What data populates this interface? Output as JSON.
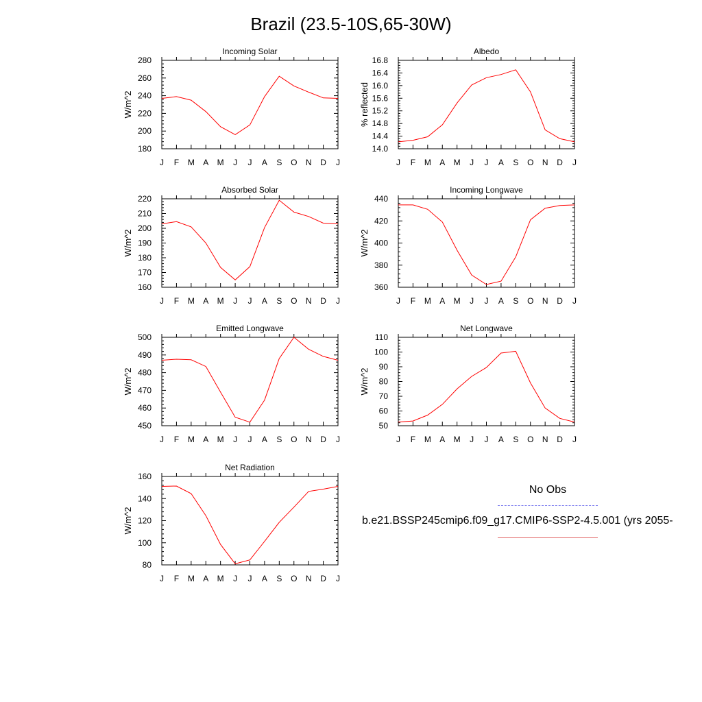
{
  "title": "Brazil (23.5-10S,65-30W)",
  "months": [
    "J",
    "F",
    "M",
    "A",
    "M",
    "J",
    "J",
    "A",
    "S",
    "O",
    "N",
    "D",
    "J"
  ],
  "legend": {
    "obs_label": "No Obs",
    "obs_color": "#7777ee",
    "model_label": "b.e21.BSSP245cmip6.f09_g17.CMIP6-SSP2-4.5.001 (yrs 2055-",
    "model_color": "#ff0000"
  },
  "chart_data": [
    {
      "type": "line",
      "title": "Incoming Solar",
      "ylabel": "W/m^2",
      "ylim": [
        180,
        280
      ],
      "yticks": [
        180,
        200,
        220,
        240,
        260,
        280
      ],
      "x": [
        "J",
        "F",
        "M",
        "A",
        "M",
        "J",
        "J",
        "A",
        "S",
        "O",
        "N",
        "D",
        "J"
      ],
      "series": [
        {
          "name": "b.e21.BSSP245cmip6.f09_g17.CMIP6-SSP2-4.5.001 (yrs 2055-",
          "values": [
            237,
            239,
            235,
            222,
            205,
            196,
            207,
            239,
            262,
            251,
            244,
            237.5,
            237
          ]
        }
      ]
    },
    {
      "type": "line",
      "title": "Albedo",
      "ylabel": "% reflected",
      "ylim": [
        14.0,
        16.8
      ],
      "yticks": [
        "14.0",
        "14.4",
        "14.8",
        "15.2",
        "15.6",
        "16.0",
        "16.4",
        "16.8"
      ],
      "x": [
        "J",
        "F",
        "M",
        "A",
        "M",
        "J",
        "J",
        "A",
        "S",
        "O",
        "N",
        "D",
        "J"
      ],
      "series": [
        {
          "name": "b.e21.BSSP245cmip6.f09_g17.CMIP6-SSP2-4.5.001 (yrs 2055-",
          "values": [
            14.22,
            14.27,
            14.38,
            14.76,
            15.45,
            16.02,
            16.25,
            16.35,
            16.5,
            15.8,
            14.6,
            14.32,
            14.22
          ]
        }
      ]
    },
    {
      "type": "line",
      "title": "Absorbed Solar",
      "ylabel": "W/m^2",
      "ylim": [
        160,
        220
      ],
      "yticks": [
        160,
        170,
        180,
        190,
        200,
        210,
        220
      ],
      "x": [
        "J",
        "F",
        "M",
        "A",
        "M",
        "J",
        "J",
        "A",
        "S",
        "O",
        "N",
        "D",
        "J"
      ],
      "series": [
        {
          "name": "b.e21.BSSP245cmip6.f09_g17.CMIP6-SSP2-4.5.001 (yrs 2055-",
          "values": [
            203,
            204.5,
            201,
            190,
            173.5,
            165,
            174,
            200.5,
            219,
            211,
            208,
            203.5,
            203
          ]
        }
      ]
    },
    {
      "type": "line",
      "title": "Incoming Longwave",
      "ylabel": "W/m^2",
      "ylim": [
        360,
        440
      ],
      "yticks": [
        360,
        380,
        400,
        420,
        440
      ],
      "x": [
        "J",
        "F",
        "M",
        "A",
        "M",
        "J",
        "J",
        "A",
        "S",
        "O",
        "N",
        "D",
        "J"
      ],
      "series": [
        {
          "name": "b.e21.BSSP245cmip6.f09_g17.CMIP6-SSP2-4.5.001 (yrs 2055-",
          "values": [
            434.5,
            434.5,
            430.5,
            419,
            393.5,
            371,
            362.5,
            365.5,
            387.5,
            421,
            431.5,
            434,
            434.5
          ]
        }
      ]
    },
    {
      "type": "line",
      "title": "Emitted Longwave",
      "ylabel": "W/m^2",
      "ylim": [
        450,
        500
      ],
      "yticks": [
        450,
        460,
        470,
        480,
        490,
        500
      ],
      "x": [
        "J",
        "F",
        "M",
        "A",
        "M",
        "J",
        "J",
        "A",
        "S",
        "O",
        "N",
        "D",
        "J"
      ],
      "series": [
        {
          "name": "b.e21.BSSP245cmip6.f09_g17.CMIP6-SSP2-4.5.001 (yrs 2055-",
          "values": [
            487,
            487.6,
            487.3,
            483.5,
            469,
            454.8,
            452,
            464.5,
            488,
            500,
            493.2,
            489.2,
            487
          ]
        }
      ]
    },
    {
      "type": "line",
      "title": "Net Longwave",
      "ylabel": "W/m^2",
      "ylim": [
        50,
        110
      ],
      "yticks": [
        50,
        60,
        70,
        80,
        90,
        100,
        110
      ],
      "x": [
        "J",
        "F",
        "M",
        "A",
        "M",
        "J",
        "J",
        "A",
        "S",
        "O",
        "N",
        "D",
        "J"
      ],
      "series": [
        {
          "name": "b.e21.BSSP245cmip6.f09_g17.CMIP6-SSP2-4.5.001 (yrs 2055-",
          "values": [
            52.5,
            53.2,
            57.2,
            64.5,
            75,
            83.5,
            89.5,
            99.3,
            100.5,
            79,
            62,
            55,
            52.5
          ]
        }
      ]
    },
    {
      "type": "line",
      "title": "Net Radiation",
      "ylabel": "W/m^2",
      "ylim": [
        80,
        160
      ],
      "yticks": [
        80,
        100,
        120,
        140,
        160
      ],
      "x": [
        "J",
        "F",
        "M",
        "A",
        "M",
        "J",
        "J",
        "A",
        "S",
        "O",
        "N",
        "D",
        "J"
      ],
      "series": [
        {
          "name": "b.e21.BSSP245cmip6.f09_g17.CMIP6-SSP2-4.5.001 (yrs 2055-",
          "values": [
            151,
            151.3,
            144.5,
            124.5,
            98.5,
            81,
            84.5,
            101.3,
            118.5,
            132.3,
            146.5,
            148.5,
            151
          ]
        }
      ]
    }
  ]
}
